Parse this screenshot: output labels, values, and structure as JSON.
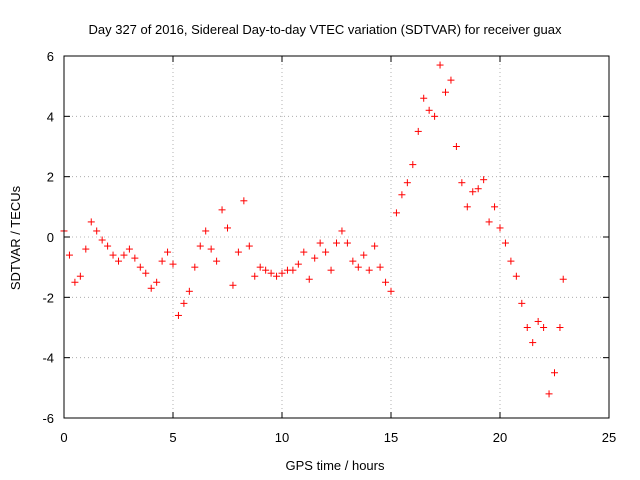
{
  "chart_data": {
    "type": "scatter",
    "title": "Day 327 of 2016, Sidereal Day-to-day VTEC variation (SDTVAR) for receiver guax",
    "xlabel": "GPS time / hours",
    "ylabel": "SDTVAR / TECUs",
    "xlim": [
      0,
      25
    ],
    "ylim": [
      -6,
      6
    ],
    "xticks": [
      0,
      5,
      10,
      15,
      20,
      25
    ],
    "yticks": [
      -6,
      -4,
      -2,
      0,
      2,
      4,
      6
    ],
    "xtick_labels": [
      "0",
      "5",
      "10",
      "15",
      "20",
      "25"
    ],
    "ytick_labels": [
      "-6",
      "-4",
      "-2",
      "0",
      "2",
      "4",
      "6"
    ],
    "grid": true,
    "marker": "+",
    "color": "#ff0000",
    "series": [
      {
        "name": "guax",
        "x": [
          0.0,
          0.25,
          0.5,
          0.75,
          1.0,
          1.25,
          1.5,
          1.75,
          2.0,
          2.25,
          2.5,
          2.75,
          3.0,
          3.25,
          3.5,
          3.75,
          4.0,
          4.25,
          4.5,
          4.75,
          5.0,
          5.25,
          5.5,
          5.75,
          6.0,
          6.25,
          6.5,
          6.75,
          7.0,
          7.25,
          7.5,
          7.75,
          8.0,
          8.25,
          8.5,
          8.75,
          9.0,
          9.25,
          9.5,
          9.75,
          10.0,
          10.25,
          10.5,
          10.75,
          11.0,
          11.25,
          11.5,
          11.75,
          12.0,
          12.25,
          12.5,
          12.75,
          13.0,
          13.25,
          13.5,
          13.75,
          14.0,
          14.25,
          14.5,
          14.75,
          15.0,
          15.25,
          15.5,
          15.75,
          16.0,
          16.25,
          16.5,
          16.75,
          17.0,
          17.25,
          17.5,
          17.75,
          18.0,
          18.25,
          18.5,
          18.75,
          19.0,
          19.25,
          19.5,
          19.75,
          20.0,
          20.25,
          20.5,
          20.75,
          21.0,
          21.25,
          21.5,
          21.75,
          22.0,
          22.25,
          22.5,
          22.75,
          22.9
        ],
        "values": [
          0.2,
          -0.6,
          -1.5,
          -1.3,
          -0.4,
          0.5,
          0.2,
          -0.1,
          -0.3,
          -0.6,
          -0.8,
          -0.6,
          -0.4,
          -0.7,
          -1.0,
          -1.2,
          -1.7,
          -1.5,
          -0.8,
          -0.5,
          -0.9,
          -2.6,
          -2.2,
          -1.8,
          -1.0,
          -0.3,
          0.2,
          -0.4,
          -0.8,
          0.9,
          0.3,
          -1.6,
          -0.5,
          1.2,
          -0.3,
          -1.3,
          -1.0,
          -1.1,
          -1.2,
          -1.3,
          -1.2,
          -1.1,
          -1.1,
          -0.9,
          -0.5,
          -1.4,
          -0.7,
          -0.2,
          -0.5,
          -1.1,
          -0.2,
          0.2,
          -0.2,
          -0.8,
          -1.0,
          -0.6,
          -1.1,
          -0.3,
          -1.0,
          -1.5,
          -1.8,
          0.8,
          1.4,
          1.8,
          2.4,
          3.5,
          4.6,
          4.2,
          4.0,
          5.7,
          4.8,
          5.2,
          3.0,
          1.8,
          1.0,
          1.5,
          1.6,
          1.9,
          0.5,
          1.0,
          0.3,
          -0.2,
          -0.8,
          -1.3,
          -2.2,
          -3.0,
          -3.5,
          -2.8,
          -3.0,
          -5.2,
          -4.5,
          -3.0,
          -1.4
        ]
      }
    ]
  }
}
